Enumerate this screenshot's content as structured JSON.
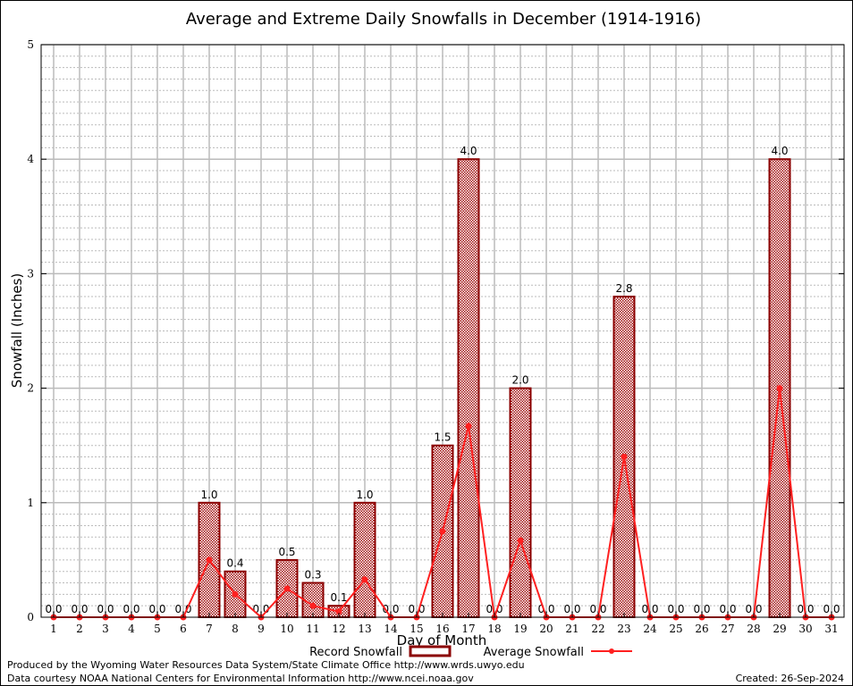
{
  "chart_data": {
    "type": "bar",
    "title": "Average and Extreme Daily Snowfalls in December (1914-1916)",
    "xlabel": "Day of Month",
    "ylabel": "Snowfall (Inches)",
    "ylim": [
      0,
      5
    ],
    "yticks": [
      "0",
      "1",
      "2",
      "3",
      "4",
      "5"
    ],
    "categories": [
      "1",
      "2",
      "3",
      "4",
      "5",
      "6",
      "7",
      "8",
      "9",
      "10",
      "11",
      "12",
      "13",
      "14",
      "15",
      "16",
      "17",
      "18",
      "19",
      "20",
      "21",
      "22",
      "23",
      "24",
      "25",
      "26",
      "27",
      "28",
      "29",
      "30",
      "31"
    ],
    "series": [
      {
        "name": "Record Snowfall",
        "type": "bar",
        "color": "#8b0000",
        "values": [
          0,
          0,
          0,
          0,
          0,
          0,
          1.0,
          0.4,
          0,
          0.5,
          0.3,
          0.1,
          1.0,
          0,
          0,
          1.5,
          4.0,
          0,
          2.0,
          0,
          0,
          0,
          2.8,
          0,
          0,
          0,
          0,
          0,
          4.0,
          0,
          0
        ],
        "labels": [
          "0.0",
          "0.0",
          "0.0",
          "0.0",
          "0.0",
          "0.0",
          "1.0",
          "0.4",
          "0.0",
          "0.5",
          "0.3",
          "0.1",
          "1.0",
          "0.0",
          "0.0",
          "1.5",
          "4.0",
          "0.0",
          "2.0",
          "0.0",
          "0.0",
          "0.0",
          "2.8",
          "0.0",
          "0.0",
          "0.0",
          "0.0",
          "0.0",
          "4.0",
          "0.0",
          "0.0"
        ]
      },
      {
        "name": "Average Snowfall",
        "type": "line",
        "color": "#ff2020",
        "values": [
          0,
          0,
          0,
          0,
          0,
          0,
          0.5,
          0.2,
          0,
          0.25,
          0.1,
          0.05,
          0.33,
          0,
          0,
          0.75,
          1.67,
          0,
          0.67,
          0,
          0,
          0,
          1.4,
          0,
          0,
          0,
          0,
          0,
          2.0,
          0,
          0
        ]
      }
    ],
    "grid": true,
    "legend": "bottom-center"
  },
  "footer": {
    "produced": "Produced by the Wyoming Water Resources Data System/State Climate Office http://www.wrds.uwyo.edu",
    "courtesy": "Data courtesy NOAA National Centers for Environmental Information http://www.ncei.noaa.gov",
    "created": "Created: 26-Sep-2024"
  }
}
